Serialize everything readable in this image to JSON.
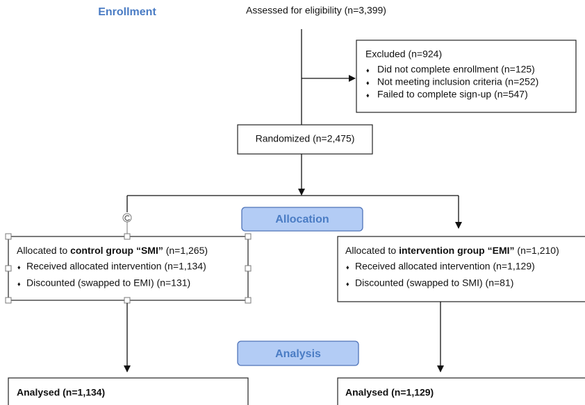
{
  "stages": {
    "enrollment": "Enrollment",
    "allocation": "Allocation",
    "analysis": "Analysis"
  },
  "assessed": "Assessed for eligibility (n=3,399)",
  "excluded": {
    "title": "Excluded (n=924)",
    "items": [
      "Did not complete enrollment (n=125)",
      "Not meeting inclusion criteria (n=252)",
      "Failed to complete sign-up (n=547)"
    ]
  },
  "randomized": "Randomized (n=2,475)",
  "control": {
    "title": {
      "prefix": "Allocated to ",
      "group": "control group “SMI”",
      "count": " (n=1,265)"
    },
    "items": [
      "Received allocated intervention (n=1,134)",
      "Discounted (swapped to EMI) (n=131)"
    ],
    "analysed": "Analysed (n=1,134)"
  },
  "intervention": {
    "title": {
      "prefix": "Allocated to ",
      "group": "intervention group “EMI”",
      "count": " (n=1,210)"
    },
    "items": [
      "Received allocated intervention (n=1,129)",
      "Discounted (swapped to SMI) (n=81)"
    ],
    "analysed": "Analysed (n=1,129)"
  }
}
